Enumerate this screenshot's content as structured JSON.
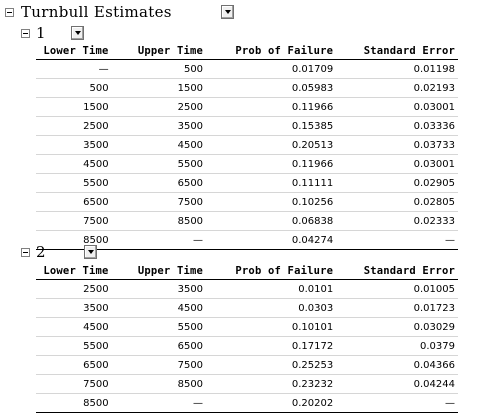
{
  "report": {
    "title": "Turnbull Estimates"
  },
  "columns": [
    "Lower Time",
    "Upper Time",
    "Prob of Failure",
    "Standard Error"
  ],
  "groups": [
    {
      "label": "1",
      "rows": [
        [
          "—",
          "500",
          "0.01709",
          "0.01198"
        ],
        [
          "500",
          "1500",
          "0.05983",
          "0.02193"
        ],
        [
          "1500",
          "2500",
          "0.11966",
          "0.03001"
        ],
        [
          "2500",
          "3500",
          "0.15385",
          "0.03336"
        ],
        [
          "3500",
          "4500",
          "0.20513",
          "0.03733"
        ],
        [
          "4500",
          "5500",
          "0.11966",
          "0.03001"
        ],
        [
          "5500",
          "6500",
          "0.11111",
          "0.02905"
        ],
        [
          "6500",
          "7500",
          "0.10256",
          "0.02805"
        ],
        [
          "7500",
          "8500",
          "0.06838",
          "0.02333"
        ],
        [
          "8500",
          "—",
          "0.04274",
          "—"
        ]
      ]
    },
    {
      "label": "2",
      "rows": [
        [
          "2500",
          "3500",
          "0.0101",
          "0.01005"
        ],
        [
          "3500",
          "4500",
          "0.0303",
          "0.01723"
        ],
        [
          "4500",
          "5500",
          "0.10101",
          "0.03029"
        ],
        [
          "5500",
          "6500",
          "0.17172",
          "0.0379"
        ],
        [
          "6500",
          "7500",
          "0.25253",
          "0.04366"
        ],
        [
          "7500",
          "8500",
          "0.23232",
          "0.04244"
        ],
        [
          "8500",
          "—",
          "0.20202",
          "—"
        ]
      ]
    }
  ]
}
